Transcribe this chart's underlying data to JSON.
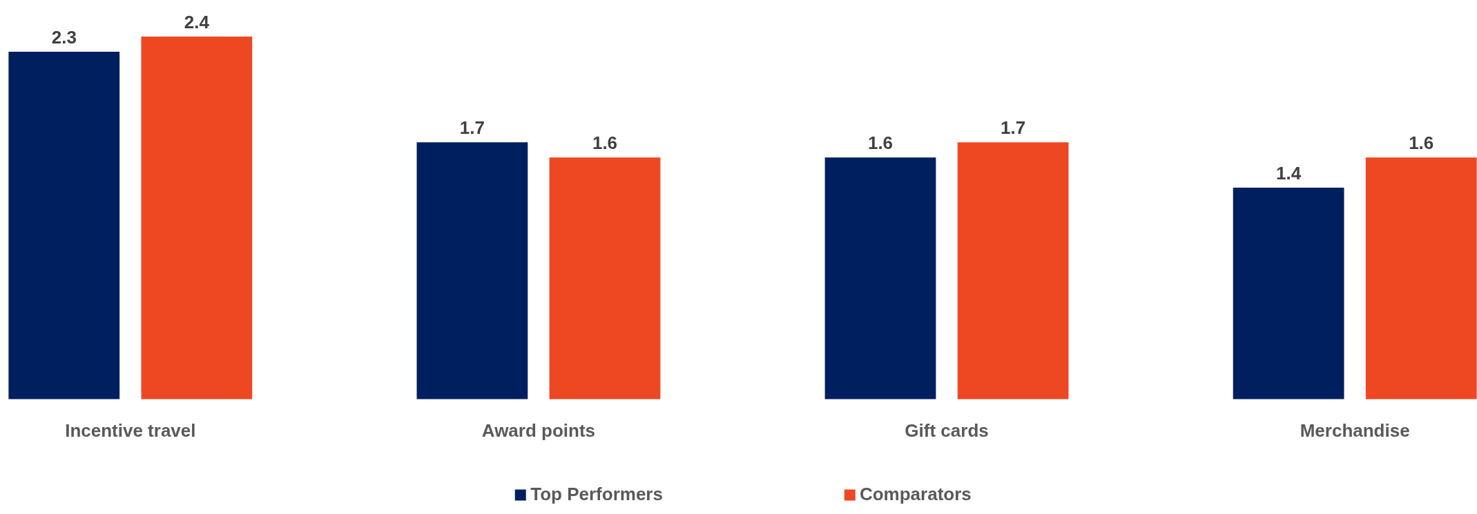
{
  "chart_data": {
    "type": "bar",
    "categories": [
      "Incentive travel",
      "Award points",
      "Gift cards",
      "Merchandise"
    ],
    "series": [
      {
        "name": "Top Performers",
        "color": "#001f5f",
        "values": [
          2.3,
          1.7,
          1.6,
          1.4
        ]
      },
      {
        "name": "Comparators",
        "color": "#ee4823",
        "values": [
          2.4,
          1.6,
          1.7,
          1.6
        ]
      }
    ],
    "data_labels": true,
    "grid": false,
    "legend": "bottom"
  }
}
